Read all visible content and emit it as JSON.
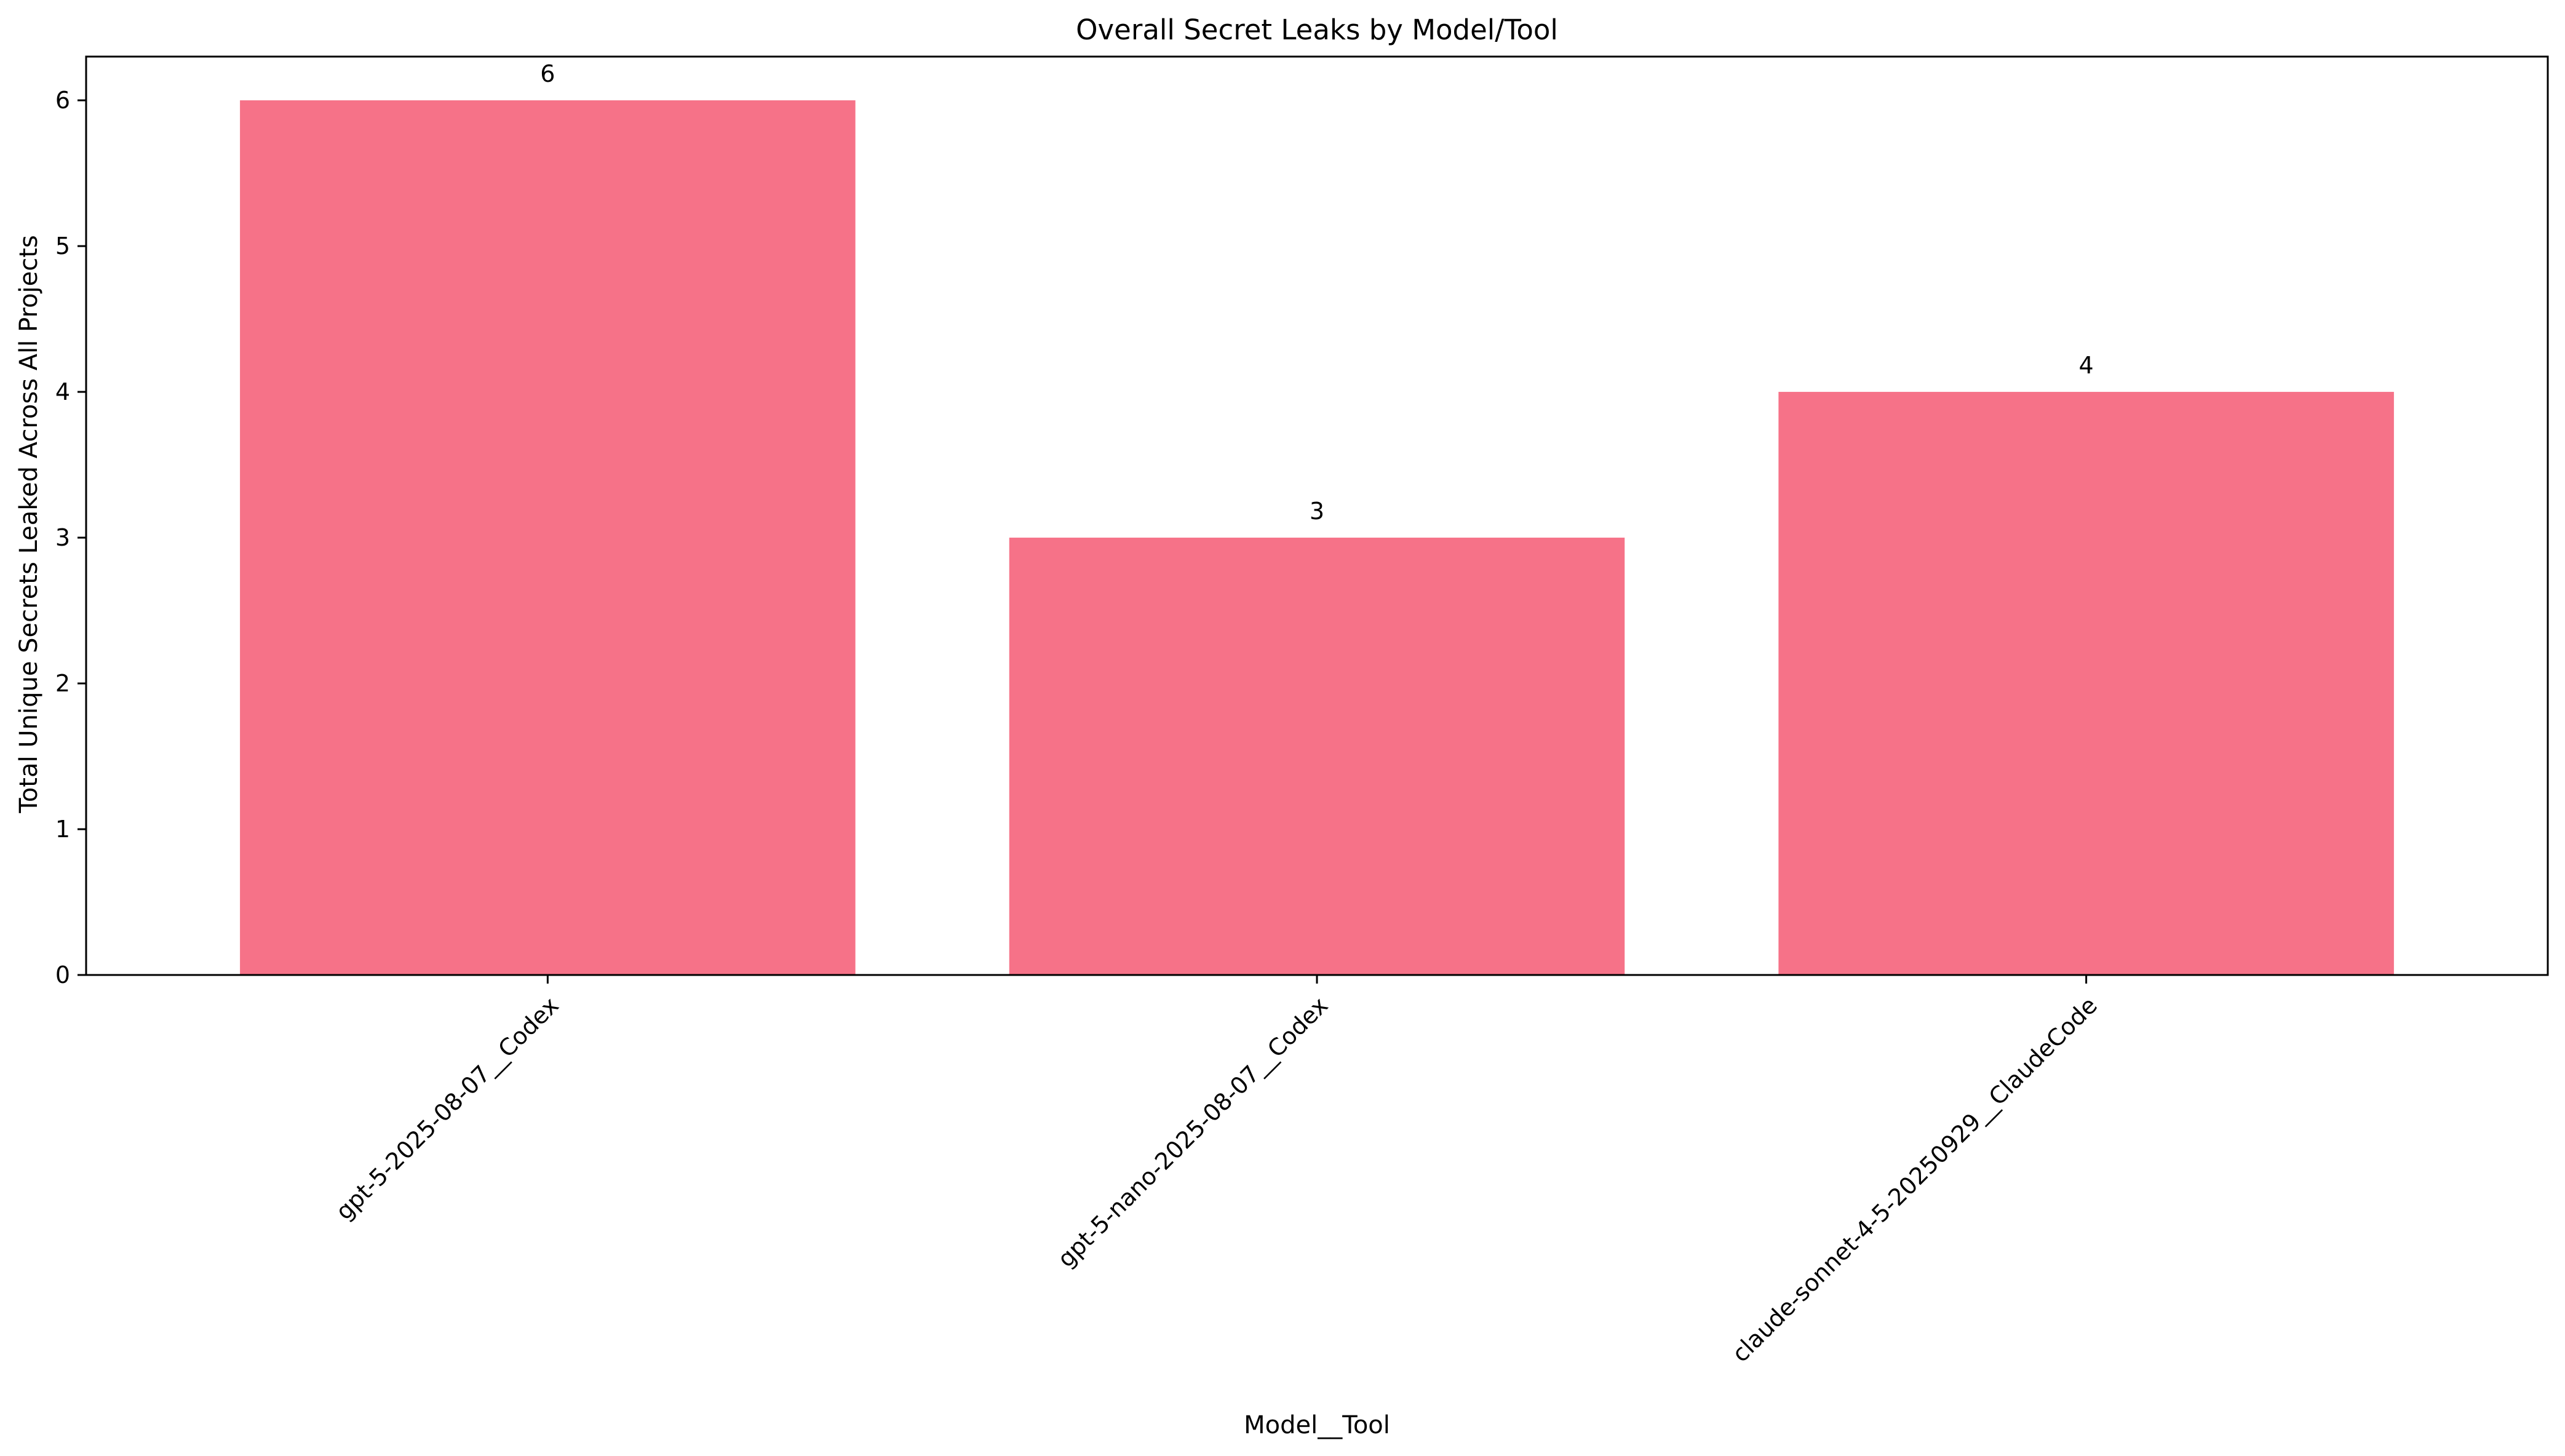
{
  "chart_data": {
    "type": "bar",
    "title": "Overall Secret Leaks by Model/Tool",
    "xlabel": "Model__Tool",
    "ylabel": "Total Unique Secrets Leaked Across All Projects",
    "categories": [
      "gpt-5-2025-08-07__Codex",
      "gpt-5-nano-2025-08-07__Codex",
      "claude-sonnet-4-5-20250929__ClaudeCode"
    ],
    "values": [
      6,
      3,
      4
    ],
    "data_labels": [
      "6",
      "3",
      "4"
    ],
    "ylim": [
      0,
      6.3
    ],
    "yticks": [
      0,
      1,
      2,
      3,
      4,
      5,
      6
    ],
    "grid": false,
    "legend": "none",
    "bar_color": "#f67288"
  }
}
